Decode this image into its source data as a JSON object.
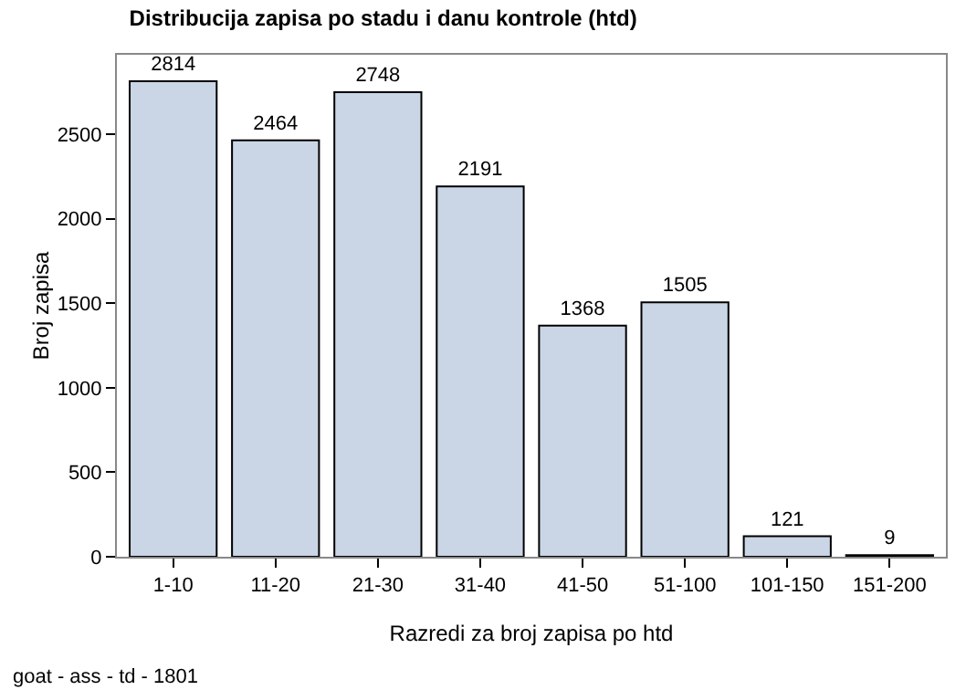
{
  "chart_data": {
    "type": "bar",
    "title": "Distribucija zapisa po stadu i danu kontrole (htd)",
    "xlabel": "Razredi za broj zapisa po htd",
    "ylabel": "Broj zapisa",
    "categories": [
      "1-10",
      "11-20",
      "21-30",
      "31-40",
      "41-50",
      "51-100",
      "101-150",
      "151-200"
    ],
    "values": [
      2814,
      2464,
      2748,
      2191,
      1368,
      1505,
      121,
      9
    ],
    "color": "#cad5e5",
    "data_labels": true,
    "grid": false,
    "legend": false,
    "ylim": [
      0,
      2970
    ],
    "yticks": [
      0,
      500,
      1000,
      1500,
      2000,
      2500
    ],
    "annotations": [
      "goat - ass - td - 1801"
    ]
  }
}
